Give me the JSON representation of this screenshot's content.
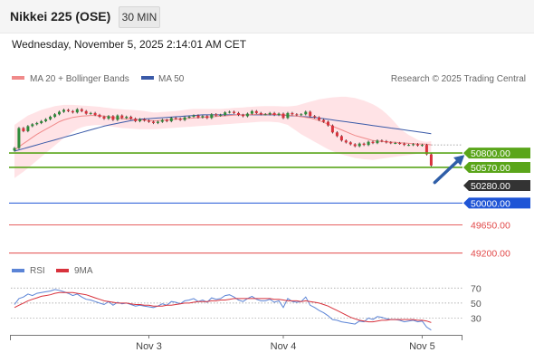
{
  "header": {
    "title": "Nikkei 225 (OSE)",
    "interval_button": "30 MIN"
  },
  "datetime": "Wednesday, November 5, 2025 2:14:01 AM CET",
  "legend": {
    "ma20_label": "MA 20 + Bollinger Bands",
    "ma50_label": "MA 50",
    "copyright": "Research © 2025 Trading Central"
  },
  "rsi_legend": {
    "rsi_label": "RSI",
    "ma9_label": "9MA"
  },
  "colors": {
    "ma20": "#f08a8a",
    "ma50": "#3a5aa8",
    "band": "#ffd9dd",
    "up": "#2e8b3a",
    "down": "#d8323c",
    "resistance": "#5aa51a",
    "pivot": "#1f55d6",
    "support": "#e24a4a",
    "last_price": "#333333",
    "rsi": "#5b84d6",
    "rsi_ma": "#d8323c"
  },
  "chart_data": [
    {
      "type": "candlestick",
      "ylim": [
        49050,
        51800
      ],
      "x_labels": [
        "Nov 3",
        "Nov 4",
        "Nov 5"
      ],
      "x_label_index": [
        30,
        60,
        91
      ],
      "n_bars": 94,
      "close": [
        50880,
        51200,
        51150,
        51230,
        51260,
        51280,
        51310,
        51340,
        51380,
        51420,
        51460,
        51490,
        51470,
        51450,
        51500,
        51470,
        51430,
        51440,
        51410,
        51380,
        51350,
        51390,
        51330,
        51400,
        51360,
        51380,
        51350,
        51310,
        51340,
        51320,
        51300,
        51280,
        51300,
        51330,
        51310,
        51360,
        51350,
        51330,
        51370,
        51380,
        51400,
        51370,
        51390,
        51360,
        51420,
        51400,
        51410,
        51450,
        51460,
        51440,
        51410,
        51390,
        51430,
        51470,
        51440,
        51420,
        51420,
        51440,
        51410,
        51430,
        51360,
        51440,
        51420,
        51410,
        51420,
        51460,
        51390,
        51370,
        51330,
        51300,
        51240,
        51130,
        51070,
        51000,
        50970,
        50940,
        50910,
        50950,
        50930,
        50980,
        50960,
        51000,
        50990,
        50970,
        50960,
        50960,
        50950,
        50930,
        50930,
        50940,
        50920,
        50930,
        50780,
        50600
      ],
      "ma20": [
        50850,
        50900,
        50950,
        51000,
        51050,
        51100,
        51140,
        51180,
        51220,
        51260,
        51300,
        51330,
        51350,
        51370,
        51380,
        51390,
        51395,
        51400,
        51400,
        51395,
        51390,
        51380,
        51370,
        51360,
        51350,
        51345,
        51340,
        51335,
        51330,
        51325,
        51320,
        51315,
        51320,
        51325,
        51330,
        51335,
        51340,
        51345,
        51350,
        51355,
        51360,
        51365,
        51370,
        51375,
        51380,
        51385,
        51390,
        51395,
        51400,
        51405,
        51410,
        51410,
        51410,
        51415,
        51420,
        51420,
        51420,
        51420,
        51420,
        51415,
        51410,
        51405,
        51400,
        51390,
        51380,
        51370,
        51360,
        51340,
        51320,
        51290,
        51260,
        51230,
        51200,
        51170,
        51140,
        51110,
        51080,
        51060,
        51040,
        51020,
        51000,
        50990,
        50985,
        50980,
        50975,
        50970,
        50965,
        50960,
        50955,
        50950,
        50945,
        50945,
        50940,
        50930
      ],
      "ma50": [
        50830,
        50850,
        50870,
        50890,
        50910,
        50930,
        50950,
        50970,
        50990,
        51010,
        51030,
        51050,
        51070,
        51090,
        51110,
        51130,
        51150,
        51170,
        51190,
        51210,
        51230,
        51245,
        51260,
        51275,
        51290,
        51305,
        51320,
        51330,
        51340,
        51345,
        51350,
        51355,
        51360,
        51365,
        51370,
        51375,
        51380,
        51385,
        51390,
        51395,
        51400,
        51405,
        51410,
        51410,
        51410,
        51410,
        51410,
        51410,
        51410,
        51410,
        51410,
        51410,
        51410,
        51410,
        51410,
        51410,
        51410,
        51410,
        51410,
        51410,
        51405,
        51400,
        51395,
        51390,
        51385,
        51380,
        51375,
        51370,
        51360,
        51350,
        51340,
        51330,
        51320,
        51310,
        51300,
        51290,
        51280,
        51270,
        51260,
        51250,
        51240,
        51230,
        51220,
        51210,
        51200,
        51190,
        51180,
        51170,
        51160,
        51150,
        51140,
        51130,
        51120,
        51110
      ],
      "band_upper": [
        51250,
        51300,
        51350,
        51400,
        51430,
        51460,
        51490,
        51510,
        51530,
        51550,
        51560,
        51570,
        51570,
        51570,
        51565,
        51560,
        51555,
        51550,
        51545,
        51540,
        51530,
        51520,
        51510,
        51505,
        51500,
        51495,
        51490,
        51485,
        51480,
        51470,
        51460,
        51450,
        51450,
        51455,
        51460,
        51465,
        51470,
        51480,
        51490,
        51500,
        51505,
        51505,
        51505,
        51505,
        51505,
        51505,
        51505,
        51510,
        51515,
        51520,
        51525,
        51530,
        51535,
        51540,
        51545,
        51548,
        51550,
        51550,
        51550,
        51548,
        51545,
        51545,
        51550,
        51560,
        51580,
        51600,
        51620,
        51640,
        51660,
        51670,
        51680,
        51690,
        51695,
        51700,
        51700,
        51690,
        51680,
        51660,
        51640,
        51610,
        51580,
        51540,
        51490,
        51430,
        51360,
        51280,
        51200,
        51140,
        51090,
        51050,
        51010,
        50990,
        50980,
        50990
      ],
      "band_lower": [
        50400,
        50450,
        50500,
        50560,
        50620,
        50680,
        50740,
        50800,
        50860,
        50920,
        50980,
        51040,
        51090,
        51140,
        51180,
        51210,
        51230,
        51240,
        51245,
        51245,
        51240,
        51230,
        51220,
        51210,
        51200,
        51195,
        51190,
        51185,
        51180,
        51180,
        51180,
        51180,
        51185,
        51190,
        51195,
        51200,
        51205,
        51210,
        51215,
        51220,
        51225,
        51230,
        51235,
        51240,
        51245,
        51250,
        51255,
        51260,
        51265,
        51270,
        51275,
        51280,
        51285,
        51290,
        51295,
        51300,
        51300,
        51300,
        51295,
        51290,
        51270,
        51250,
        51200,
        51150,
        51100,
        51060,
        51020,
        50980,
        50940,
        50900,
        50860,
        50830,
        50800,
        50780,
        50760,
        50740,
        50720,
        50710,
        50700,
        50695,
        50690,
        50700,
        50710,
        50720,
        50730,
        50740,
        50750,
        50760,
        50770,
        50780,
        50790,
        50800,
        50810,
        50820
      ],
      "levels": {
        "resistance": [
          50800,
          50570
        ],
        "pivot": 50000,
        "support": [
          49650,
          49200
        ],
        "last_price": 50280,
        "prev_close_ref": 50930
      },
      "level_labels": {
        "r1": "50800.00",
        "r2": "50570.00",
        "last": "50280.00",
        "pivot": "50000.00",
        "s1": "49650.00",
        "s2": "49200.00"
      },
      "forecast_arrow": {
        "from_index": 93,
        "from_value": 50300,
        "to_index": 100,
        "to_value": 50740
      }
    },
    {
      "type": "line",
      "name": "RSI",
      "ylim": [
        10,
        80
      ],
      "y_ticks": [
        70,
        50,
        30
      ],
      "rsi": [
        48,
        56,
        58,
        62,
        60,
        63,
        64,
        65,
        66,
        68,
        67,
        65,
        63,
        60,
        62,
        58,
        55,
        54,
        52,
        50,
        48,
        52,
        47,
        51,
        49,
        50,
        48,
        46,
        47,
        46,
        45,
        44,
        46,
        49,
        47,
        52,
        51,
        49,
        53,
        54,
        56,
        52,
        54,
        51,
        57,
        55,
        56,
        60,
        61,
        58,
        54,
        52,
        56,
        59,
        55,
        53,
        53,
        55,
        51,
        53,
        44,
        56,
        52,
        51,
        52,
        58,
        47,
        44,
        40,
        37,
        33,
        28,
        27,
        25,
        24,
        23,
        22,
        26,
        25,
        30,
        28,
        32,
        31,
        29,
        28,
        28,
        27,
        25,
        26,
        27,
        25,
        26,
        18,
        14
      ],
      "ma9": [
        44,
        47,
        50,
        53,
        55,
        57,
        59,
        60,
        61,
        63,
        64,
        64,
        64,
        64,
        63,
        62,
        61,
        59,
        57,
        55,
        53,
        52,
        51,
        50,
        50,
        50,
        49,
        48,
        48,
        47,
        47,
        46,
        46,
        46,
        47,
        47,
        48,
        49,
        50,
        50,
        51,
        52,
        52,
        52,
        53,
        53,
        54,
        54,
        55,
        56,
        56,
        56,
        56,
        56,
        56,
        56,
        56,
        56,
        55,
        55,
        54,
        53,
        53,
        53,
        52,
        53,
        52,
        51,
        50,
        48,
        46,
        43,
        40,
        37,
        34,
        31,
        29,
        27,
        26,
        25,
        25,
        26,
        27,
        27,
        28,
        28,
        28,
        28,
        28,
        28,
        27,
        27,
        26,
        24
      ]
    }
  ]
}
